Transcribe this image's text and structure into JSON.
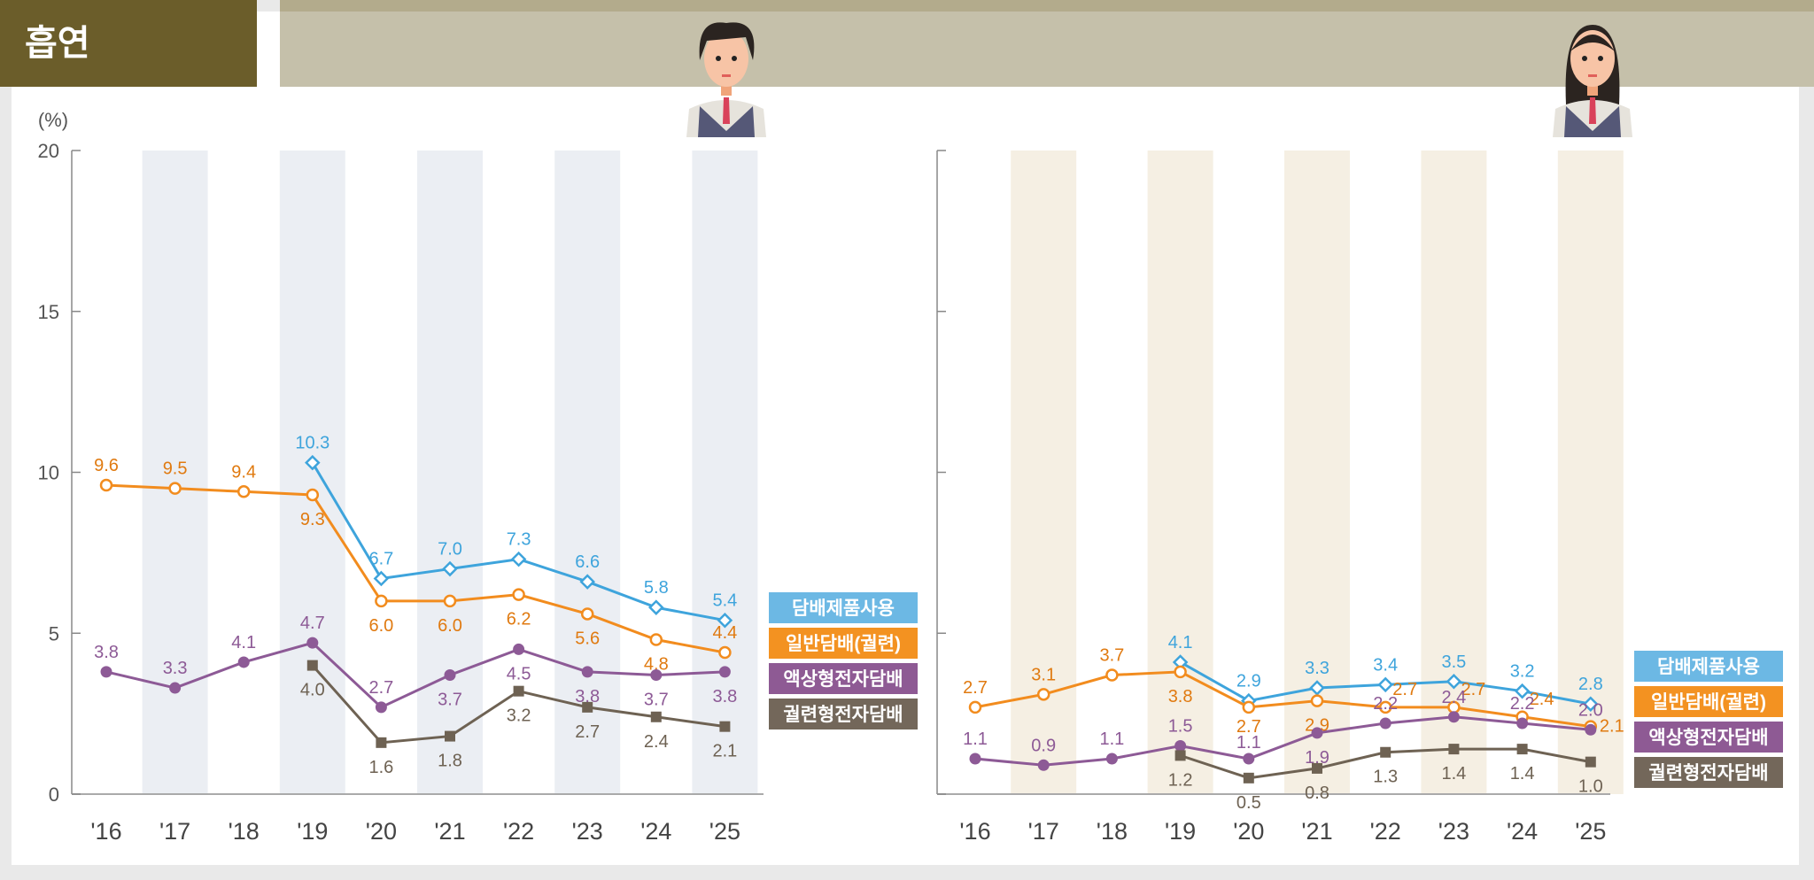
{
  "title": "흡연",
  "unit": "(%)",
  "colors": {
    "blue": "#3ea4dc",
    "orange": "#f28c1e",
    "purple": "#8d5a96",
    "brown": "#6e6253",
    "male_band": "#ebeef3",
    "female_band": "#f5efe3"
  },
  "icons": {
    "male": "male-student-icon",
    "female": "female-student-icon"
  },
  "chart_data": [
    {
      "type": "line",
      "group": "male",
      "categories": [
        "'16",
        "'17",
        "'18",
        "'19",
        "'20",
        "'21",
        "'22",
        "'23",
        "'24",
        "'25"
      ],
      "ylim": [
        0,
        20
      ],
      "yticks": [
        0,
        5,
        10,
        15,
        20
      ],
      "ylabel": "(%)",
      "legend": "right",
      "series": [
        {
          "name": "담배제품사용",
          "color": "#3ea4dc",
          "marker": "diamond",
          "values": [
            null,
            null,
            null,
            10.3,
            6.7,
            7.0,
            7.3,
            6.6,
            5.8,
            5.4
          ]
        },
        {
          "name": "일반담배(궐련)",
          "color": "#f28c1e",
          "marker": "circle-open",
          "values": [
            9.6,
            9.5,
            9.4,
            9.3,
            6.0,
            6.0,
            6.2,
            5.6,
            4.8,
            4.4
          ]
        },
        {
          "name": "액상형전자담배",
          "color": "#8d5a96",
          "marker": "circle",
          "values": [
            3.8,
            3.3,
            4.1,
            4.7,
            2.7,
            3.7,
            4.5,
            3.8,
            3.7,
            3.8
          ]
        },
        {
          "name": "궐련형전자담배",
          "color": "#6e6253",
          "marker": "square",
          "values": [
            null,
            null,
            null,
            4.0,
            1.6,
            1.8,
            3.2,
            2.7,
            2.4,
            2.1
          ]
        }
      ]
    },
    {
      "type": "line",
      "group": "female",
      "categories": [
        "'16",
        "'17",
        "'18",
        "'19",
        "'20",
        "'21",
        "'22",
        "'23",
        "'24",
        "'25"
      ],
      "ylim": [
        0,
        20
      ],
      "legend": "right",
      "series": [
        {
          "name": "담배제품사용",
          "color": "#3ea4dc",
          "marker": "diamond",
          "values": [
            null,
            null,
            null,
            4.1,
            2.9,
            3.3,
            3.4,
            3.5,
            3.2,
            2.8
          ]
        },
        {
          "name": "일반담배(궐련)",
          "color": "#f28c1e",
          "marker": "circle-open",
          "values": [
            2.7,
            3.1,
            3.7,
            3.8,
            2.7,
            2.9,
            2.7,
            2.7,
            2.4,
            2.1
          ]
        },
        {
          "name": "액상형전자담배",
          "color": "#8d5a96",
          "marker": "circle",
          "values": [
            1.1,
            0.9,
            1.1,
            1.5,
            1.1,
            1.9,
            2.2,
            2.4,
            2.2,
            2.0
          ]
        },
        {
          "name": "궐련형전자담배",
          "color": "#6e6253",
          "marker": "square",
          "values": [
            null,
            null,
            null,
            1.2,
            0.5,
            0.8,
            1.3,
            1.4,
            1.4,
            1.0
          ]
        }
      ]
    }
  ]
}
